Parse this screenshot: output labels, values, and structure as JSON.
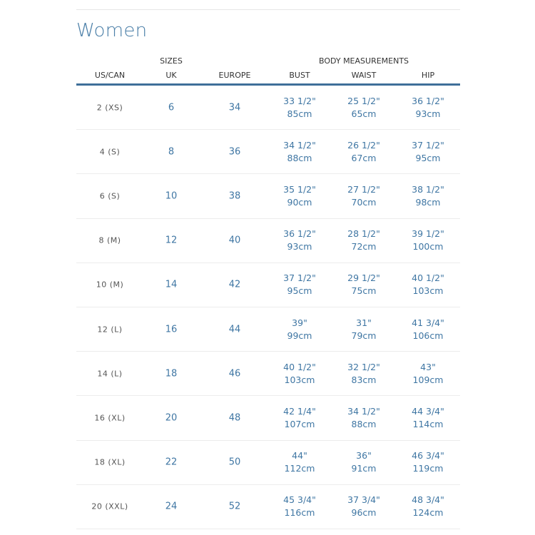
{
  "title": "Women",
  "groups": {
    "sizes": "SIZES",
    "body": "BODY MEASUREMENTS"
  },
  "headers": [
    "US/CAN",
    "UK",
    "EUROPE",
    "BUST",
    "WAIST",
    "HIP"
  ],
  "colors": {
    "accent": "#3f76a3",
    "rule": "#3f6f99"
  },
  "rows": [
    {
      "us": "2 (XS)",
      "uk": "6",
      "eu": "34",
      "bust_in": "33 1/2\"",
      "bust_cm": "85cm",
      "waist_in": "25 1/2\"",
      "waist_cm": "65cm",
      "hip_in": "36 1/2\"",
      "hip_cm": "93cm"
    },
    {
      "us": "4 (S)",
      "uk": "8",
      "eu": "36",
      "bust_in": "34 1/2\"",
      "bust_cm": "88cm",
      "waist_in": "26 1/2\"",
      "waist_cm": "67cm",
      "hip_in": "37 1/2\"",
      "hip_cm": "95cm"
    },
    {
      "us": "6 (S)",
      "uk": "10",
      "eu": "38",
      "bust_in": "35 1/2\"",
      "bust_cm": "90cm",
      "waist_in": "27 1/2\"",
      "waist_cm": "70cm",
      "hip_in": "38 1/2\"",
      "hip_cm": "98cm"
    },
    {
      "us": "8 (M)",
      "uk": "12",
      "eu": "40",
      "bust_in": "36 1/2\"",
      "bust_cm": "93cm",
      "waist_in": "28 1/2\"",
      "waist_cm": "72cm",
      "hip_in": "39 1/2\"",
      "hip_cm": "100cm"
    },
    {
      "us": "10 (M)",
      "uk": "14",
      "eu": "42",
      "bust_in": "37 1/2\"",
      "bust_cm": "95cm",
      "waist_in": "29 1/2\"",
      "waist_cm": "75cm",
      "hip_in": "40 1/2\"",
      "hip_cm": "103cm"
    },
    {
      "us": "12 (L)",
      "uk": "16",
      "eu": "44",
      "bust_in": "39\"",
      "bust_cm": "99cm",
      "waist_in": "31\"",
      "waist_cm": "79cm",
      "hip_in": "41 3/4\"",
      "hip_cm": "106cm"
    },
    {
      "us": "14 (L)",
      "uk": "18",
      "eu": "46",
      "bust_in": "40 1/2\"",
      "bust_cm": "103cm",
      "waist_in": "32 1/2\"",
      "waist_cm": "83cm",
      "hip_in": "43\"",
      "hip_cm": "109cm"
    },
    {
      "us": "16 (XL)",
      "uk": "20",
      "eu": "48",
      "bust_in": "42 1/4\"",
      "bust_cm": "107cm",
      "waist_in": "34 1/2\"",
      "waist_cm": "88cm",
      "hip_in": "44 3/4\"",
      "hip_cm": "114cm"
    },
    {
      "us": "18 (XL)",
      "uk": "22",
      "eu": "50",
      "bust_in": "44\"",
      "bust_cm": "112cm",
      "waist_in": "36\"",
      "waist_cm": "91cm",
      "hip_in": "46 3/4\"",
      "hip_cm": "119cm"
    },
    {
      "us": "20 (XXL)",
      "uk": "24",
      "eu": "52",
      "bust_in": "45 3/4\"",
      "bust_cm": "116cm",
      "waist_in": "37 3/4\"",
      "waist_cm": "96cm",
      "hip_in": "48 3/4\"",
      "hip_cm": "124cm"
    }
  ]
}
